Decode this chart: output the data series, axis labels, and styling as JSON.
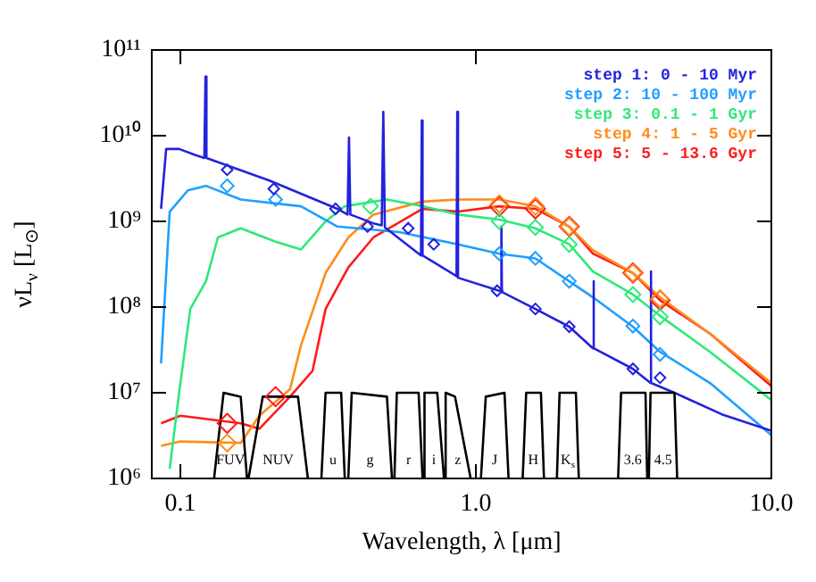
{
  "chart_data": {
    "type": "line",
    "xlabel": "Wavelength, λ [μm]",
    "ylabel": "νL$_{ν}$ [L$_{⊙}$]",
    "log": "xy",
    "xlim": [
      0.08,
      10
    ],
    "xticks": [
      {
        "value": 0.1,
        "label": "0.1"
      },
      {
        "value": 1,
        "label": "1.0"
      },
      {
        "value": 10,
        "label": "10.0"
      }
    ],
    "ylim": [
      1000000,
      100000000000
    ],
    "yticks": [
      {
        "value": 1000000,
        "label": "10⁶"
      },
      {
        "value": 10000000,
        "label": "10⁷"
      },
      {
        "value": 100000000,
        "label": "10⁸"
      },
      {
        "value": 1000000000,
        "label": "10⁹"
      },
      {
        "value": 10000000000,
        "label": "10¹⁰"
      },
      {
        "value": 100000000000,
        "label": "10¹¹"
      }
    ],
    "grid": false,
    "legend": "top right",
    "series": [
      {
        "color": "#000000",
        "x": [
          0.13,
          0.14,
          0.16,
          0.168,
          0.1685,
          0.17,
          0.19,
          0.25,
          0.27,
          0.28,
          0.3,
          0.31,
          0.35,
          0.36,
          0.365,
          0.37,
          0.38,
          0.5,
          0.52,
          0.525,
          0.53,
          0.54,
          0.64,
          0.66,
          0.662,
          0.665,
          0.67,
          0.74,
          0.78,
          0.782,
          0.785,
          0.79,
          0.85,
          0.96,
          1.0,
          1.04,
          1.08,
          1.25,
          1.29,
          1.36,
          1.44,
          1.48,
          1.66,
          1.7,
          1.8,
          1.88,
          1.92,
          2.18,
          2.23,
          2.6,
          3.03,
          3.1,
          3.75,
          3.8,
          3.82,
          3.85,
          3.9,
          4.7,
          4.8
        ],
        "values": [
          1000000,
          10000000,
          9000000,
          1000000,
          null,
          1000000,
          9000000,
          9000000,
          1000000,
          null,
          1000000,
          10000000,
          10000000,
          1000000,
          null,
          1000000,
          10000000,
          9000000,
          1000000,
          null,
          1000000,
          10000000,
          10000000,
          1000000,
          null,
          1000000,
          10000000,
          10000000,
          1000000,
          null,
          1000000,
          10000000,
          9000000,
          1000000,
          null,
          1000000,
          9000000,
          10000000,
          1000000,
          null,
          1000000,
          10000000,
          10000000,
          1000000,
          null,
          1000000,
          10000000,
          10000000,
          1000000,
          null,
          1000000,
          10000000,
          10000000,
          1000000,
          null,
          1000000,
          10000000,
          10000000,
          1000000
        ]
      },
      {
        "name": "step 1: 0 - 10 Myr",
        "color": "#2222dd",
        "x": [
          0.086,
          0.0895,
          0.099,
          0.113,
          0.1205,
          0.1216,
          0.1225,
          0.2,
          0.34,
          0.368,
          0.372,
          0.376,
          0.45,
          0.48,
          0.486,
          0.492,
          0.652,
          0.656,
          0.66,
          0.86,
          0.865,
          0.87,
          1.2,
          1.215,
          1.22,
          1.225,
          1.59,
          2.07,
          2.49,
          2.5,
          2.51,
          3.4,
          3.9,
          3.91,
          3.92,
          4.7,
          6.8,
          10
        ],
        "values": [
          1400000000,
          7000000000,
          7000000000,
          5900000000,
          5500000000,
          49000000000,
          5500000000,
          3000000000,
          1400000000,
          1200000000,
          9500000000,
          1200000000,
          950000000,
          900000000,
          19000000000,
          850000000,
          400000000,
          15000000000,
          400000000,
          230000000,
          19000000000,
          220000000,
          155000000,
          155000000,
          870000000,
          150000000,
          95000000,
          59000000,
          33000000,
          200000000,
          33000000,
          19000000,
          13000000,
          260000000,
          13000000,
          10000000,
          5600000,
          3600000
        ]
      },
      {
        "name": "step 2: 10 - 100 Myr",
        "color": "#1e9fff",
        "x": [
          0.086,
          0.092,
          0.106,
          0.122,
          0.16,
          0.256,
          0.34,
          0.55,
          0.87,
          1.2,
          1.59,
          2.07,
          2.49,
          3.4,
          4.2,
          6.2,
          10
        ],
        "values": [
          22000000,
          1300000000,
          2300000000,
          2600000000,
          1800000000,
          1500000000,
          870000000,
          750000000,
          540000000,
          420000000,
          370000000,
          200000000,
          130000000,
          59000000,
          30000000,
          13000000,
          3200000
        ]
      },
      {
        "name": "step 3: 0.1 - 1 Gyr",
        "color": "#2ee87a",
        "x": [
          0.092,
          0.099,
          0.108,
          0.122,
          0.134,
          0.16,
          0.21,
          0.256,
          0.31,
          0.36,
          0.5,
          0.66,
          0.87,
          1.2,
          1.59,
          2.07,
          2.49,
          3.4,
          4.2,
          6.2,
          10
        ],
        "values": [
          1300000,
          10000000,
          95000000,
          200000000,
          650000000,
          830000000,
          580000000,
          470000000,
          1000000000,
          1500000000,
          1800000000,
          1500000000,
          1200000000,
          1050000000,
          830000000,
          540000000,
          260000000,
          140000000,
          79000000,
          30000000,
          8200000
        ]
      },
      {
        "name": "step 4: 1 - 5 Gyr",
        "color": "#ff8c1a",
        "x": [
          0.086,
          0.1,
          0.16,
          0.185,
          0.235,
          0.256,
          0.31,
          0.37,
          0.45,
          0.66,
          0.87,
          1.2,
          1.59,
          2.07,
          2.49,
          3.4,
          4.2,
          6.2,
          10
        ],
        "values": [
          2400000,
          2700000,
          2600000,
          5400000,
          11000000,
          36000000,
          250000000,
          650000000,
          1200000000,
          1700000000,
          1800000000,
          1800000000,
          1500000000,
          870000000,
          460000000,
          250000000,
          130000000,
          49000000,
          13000000
        ]
      },
      {
        "name": "step 5: 5 - 13.6 Gyr",
        "color": "#ff1a1a",
        "x": [
          0.086,
          0.1,
          0.16,
          0.185,
          0.235,
          0.28,
          0.31,
          0.37,
          0.45,
          0.66,
          0.87,
          1.2,
          1.59,
          2.07,
          2.49,
          3.4,
          4.2,
          6.2,
          10
        ],
        "values": [
          4400000,
          5400000,
          4400000,
          3800000,
          9000000,
          18000000,
          95000000,
          290000000,
          650000000,
          1400000000,
          1300000000,
          1500000000,
          1400000000,
          870000000,
          420000000,
          250000000,
          120000000,
          49000000,
          12000000
        ]
      },
      {
        "type": "scatter",
        "marker": "diamond",
        "color": "#2222dd",
        "x": [
          0.144,
          0.207,
          0.335,
          0.43,
          0.59,
          0.72,
          1.18,
          1.59,
          2.07,
          3.4,
          4.2
        ],
        "values": [
          4000000000,
          2400000000,
          1400000000,
          870000000,
          830000000,
          540000000,
          155000000,
          95000000,
          59000000,
          19000000,
          15000000
        ]
      },
      {
        "type": "scatter",
        "marker": "diamond",
        "color": "#1e9fff",
        "x": [
          0.144,
          0.21,
          1.2,
          1.59,
          2.07,
          3.4,
          4.2
        ],
        "values": [
          2600000000,
          1800000000,
          420000000,
          370000000,
          200000000,
          60000000,
          28000000
        ]
      },
      {
        "type": "scatter",
        "marker": "diamond",
        "color": "#2ee87a",
        "x": [
          0.44,
          1.2,
          1.59,
          2.07,
          3.4,
          4.2
        ],
        "values": [
          1500000000,
          1000000000,
          850000000,
          540000000,
          140000000,
          77000000
        ]
      },
      {
        "type": "scatter",
        "marker": "diamond",
        "color": "#ff8c1a",
        "x": [
          0.144,
          1.2,
          1.59,
          2.07,
          3.4,
          4.2
        ],
        "values": [
          2600000,
          1600000000,
          1500000000,
          870000000,
          250000000,
          125000000
        ]
      },
      {
        "type": "scatter",
        "marker": "diamond",
        "color": "#ff1a1a",
        "x": [
          0.144,
          0.21,
          1.2,
          1.59,
          2.07,
          3.4,
          4.2
        ],
        "values": [
          4400000,
          9000000,
          1500000000,
          1400000000,
          870000000,
          250000000,
          120000000
        ]
      }
    ],
    "annotations": [
      "FUV",
      "NUV",
      "u",
      "g",
      "r",
      "i",
      "z",
      "J",
      "H",
      "K$_{s}$",
      "3.6",
      "4.5"
    ]
  }
}
